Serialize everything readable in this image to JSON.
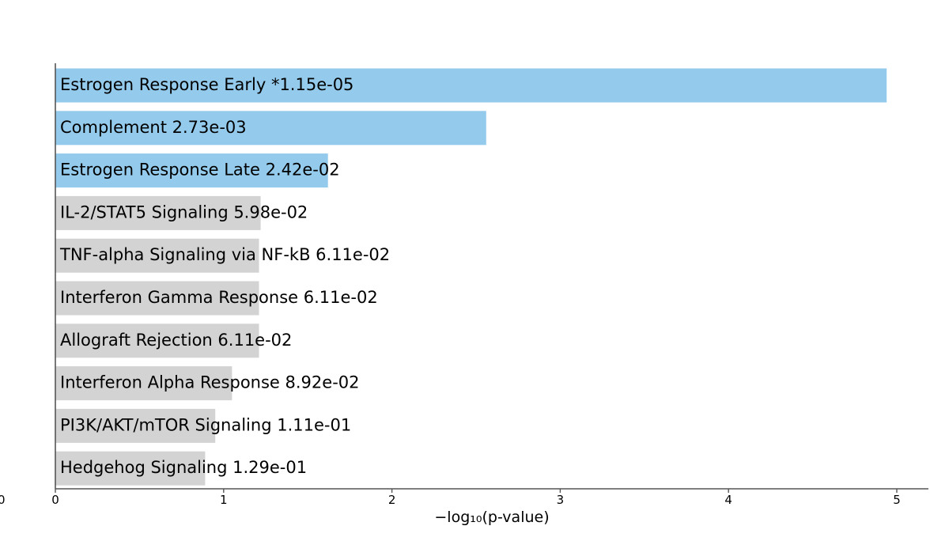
{
  "chart_data": {
    "type": "bar",
    "orientation": "horizontal",
    "xlabel": "−log₁₀(p-value)",
    "ylabel": "",
    "title": "",
    "xlim": [
      0,
      5.2
    ],
    "xticks": [
      "0",
      "1",
      "2",
      "3",
      "4",
      "5"
    ],
    "left_tick_fragment": "0",
    "grid": false,
    "legend": "none",
    "colors": {
      "significant": "#94cbec",
      "not_significant": "#d3d3d3",
      "axis": "#555555"
    },
    "bars": [
      {
        "term": "Estrogen Response Early",
        "pvalue_label": "*1.15e-05",
        "value": 4.94,
        "significant": true
      },
      {
        "term": "Complement",
        "pvalue_label": "2.73e-03",
        "value": 2.56,
        "significant": true
      },
      {
        "term": "Estrogen Response Late",
        "pvalue_label": "2.42e-02",
        "value": 1.62,
        "significant": true
      },
      {
        "term": "IL-2/STAT5 Signaling",
        "pvalue_label": "5.98e-02",
        "value": 1.22,
        "significant": false
      },
      {
        "term": "TNF-alpha Signaling via NF-kB",
        "pvalue_label": "6.11e-02",
        "value": 1.21,
        "significant": false
      },
      {
        "term": "Interferon Gamma Response",
        "pvalue_label": "6.11e-02",
        "value": 1.21,
        "significant": false
      },
      {
        "term": "Allograft Rejection",
        "pvalue_label": "6.11e-02",
        "value": 1.21,
        "significant": false
      },
      {
        "term": "Interferon Alpha Response",
        "pvalue_label": "8.92e-02",
        "value": 1.05,
        "significant": false
      },
      {
        "term": "PI3K/AKT/mTOR  Signaling",
        "pvalue_label": "1.11e-01",
        "value": 0.95,
        "significant": false
      },
      {
        "term": "Hedgehog Signaling",
        "pvalue_label": "1.29e-01",
        "value": 0.89,
        "significant": false
      }
    ]
  }
}
